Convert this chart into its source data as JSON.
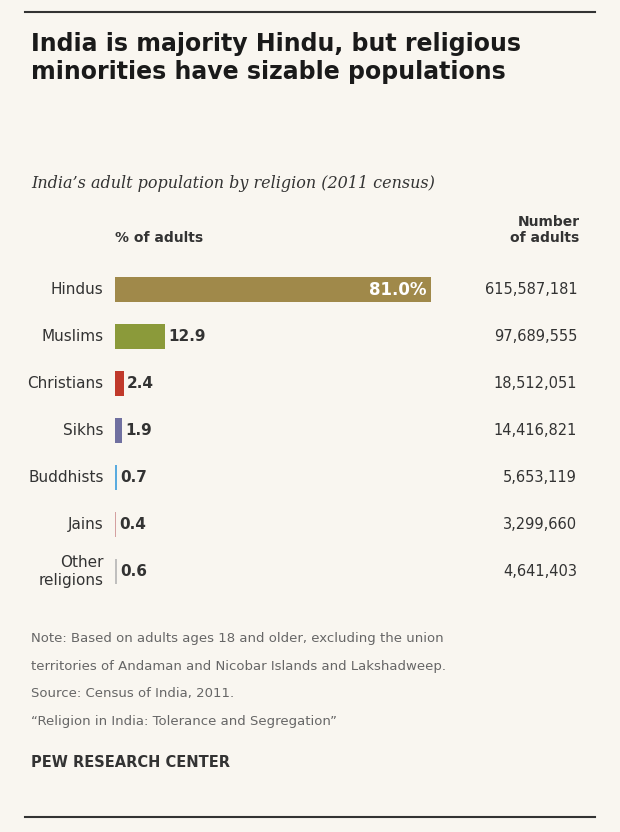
{
  "title": "India is majority Hindu, but religious\nminorities have sizable populations",
  "subtitle": "India’s adult population by religion (2011 census)",
  "categories": [
    "Hindus",
    "Muslims",
    "Christians",
    "Sikhs",
    "Buddhists",
    "Jains",
    "Other\nreligions"
  ],
  "values": [
    81.0,
    12.9,
    2.4,
    1.9,
    0.7,
    0.4,
    0.6
  ],
  "bar_colors": [
    "#a0894a",
    "#8b9a3a",
    "#c0392b",
    "#7070a0",
    "#5aabdf",
    "#d4a0a0",
    "#c0bfbe"
  ],
  "number_labels": [
    "615,587,181",
    "97,689,555",
    "18,512,051",
    "14,416,821",
    "5,653,119",
    "3,299,660",
    "4,641,403"
  ],
  "pct_labels": [
    "81.0%",
    "12.9",
    "2.4",
    "1.9",
    "0.7",
    "0.4",
    "0.6"
  ],
  "note_line1": "Note: Based on adults ages 18 and older, excluding the union",
  "note_line2": "territories of Andaman and Nicobar Islands and Lakshadweep.",
  "note_line3": "Source: Census of India, 2011.",
  "note_line4": "“Religion in India: Tolerance and Segregation”",
  "source_label": "PEW RESEARCH CENTER",
  "col_header_pct": "% of adults",
  "col_header_num": "Number\nof adults",
  "background_color": "#f9f6f0",
  "title_color": "#1a1a1a",
  "text_color": "#333333",
  "note_color": "#666666",
  "xlim": [
    0,
    85
  ],
  "top_line_color": "#333333",
  "bottom_line_color": "#333333"
}
